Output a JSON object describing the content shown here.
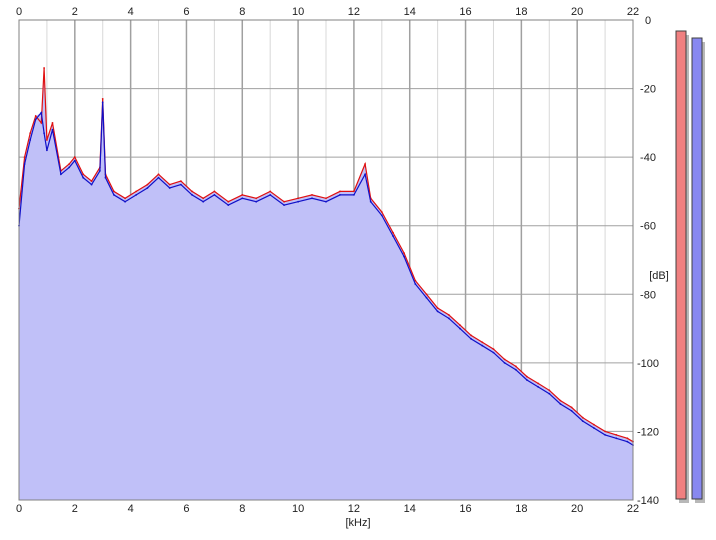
{
  "colors": {
    "background": "#ffffff",
    "plot_background": "#ffffff",
    "grid_major": "#a0a0a0",
    "grid_minor": "#d8d8d8",
    "fill": "#c0c0f8",
    "left_channel": "#e01010",
    "right_channel": "#1010c8",
    "left_meter": "#f08080",
    "right_meter": "#8888f0"
  },
  "chart_data": {
    "type": "line",
    "title": "",
    "xlabel": "[kHz]",
    "ylabel": "[dB]",
    "xlim": [
      0,
      22
    ],
    "ylim": [
      -140,
      0
    ],
    "x_ticks": [
      "0",
      "2",
      "4",
      "6",
      "8",
      "10",
      "12",
      "14",
      "16",
      "18",
      "20",
      "22"
    ],
    "y_ticks": [
      "0",
      "-20",
      "-40",
      "-60",
      "-80",
      "-100",
      "-120",
      "-140"
    ],
    "y_tick_values": [
      0,
      -20,
      -40,
      -60,
      -80,
      -100,
      -120,
      -140
    ],
    "grid": true,
    "filled": true,
    "series": [
      {
        "color": "#e01010",
        "x": [
          0,
          0.2,
          0.4,
          0.6,
          0.8,
          0.9,
          1.0,
          1.2,
          1.5,
          1.8,
          2.0,
          2.3,
          2.6,
          2.9,
          3.0,
          3.1,
          3.4,
          3.8,
          4.2,
          4.6,
          5.0,
          5.4,
          5.8,
          6.2,
          6.6,
          7.0,
          7.5,
          8.0,
          8.5,
          9.0,
          9.5,
          10.0,
          10.5,
          11.0,
          11.5,
          12.0,
          12.4,
          12.6,
          13.0,
          13.4,
          13.8,
          14.2,
          14.6,
          15.0,
          15.4,
          15.8,
          16.2,
          16.6,
          17.0,
          17.4,
          17.8,
          18.2,
          18.6,
          19.0,
          19.4,
          19.8,
          20.2,
          20.6,
          21.0,
          21.4,
          21.8,
          22.0
        ],
        "y": [
          -55,
          -40,
          -33,
          -28,
          -30,
          -14,
          -35,
          -30,
          -44,
          -42,
          -40,
          -45,
          -47,
          -43,
          -23,
          -45,
          -50,
          -52,
          -50,
          -48,
          -45,
          -48,
          -47,
          -50,
          -52,
          -50,
          -53,
          -51,
          -52,
          -50,
          -53,
          -52,
          -51,
          -52,
          -50,
          -50,
          -42,
          -52,
          -56,
          -62,
          -68,
          -76,
          -80,
          -84,
          -86,
          -89,
          -92,
          -94,
          -96,
          -99,
          -101,
          -104,
          -106,
          -108,
          -111,
          -113,
          -116,
          -118,
          -120,
          -121,
          -122,
          -123
        ]
      },
      {
        "color": "#1010c8",
        "x": [
          0,
          0.2,
          0.4,
          0.6,
          0.8,
          0.9,
          1.0,
          1.2,
          1.5,
          1.8,
          2.0,
          2.3,
          2.6,
          2.9,
          3.0,
          3.1,
          3.4,
          3.8,
          4.2,
          4.6,
          5.0,
          5.4,
          5.8,
          6.2,
          6.6,
          7.0,
          7.5,
          8.0,
          8.5,
          9.0,
          9.5,
          10.0,
          10.5,
          11.0,
          11.5,
          12.0,
          12.4,
          12.6,
          13.0,
          13.4,
          13.8,
          14.2,
          14.6,
          15.0,
          15.4,
          15.8,
          16.2,
          16.6,
          17.0,
          17.4,
          17.8,
          18.2,
          18.6,
          19.0,
          19.4,
          19.8,
          20.2,
          20.6,
          21.0,
          21.4,
          21.8,
          22.0
        ],
        "y": [
          -60,
          -42,
          -35,
          -29,
          -27,
          -33,
          -38,
          -32,
          -45,
          -43,
          -41,
          -46,
          -48,
          -44,
          -24,
          -46,
          -51,
          -53,
          -51,
          -49,
          -46,
          -49,
          -48,
          -51,
          -53,
          -51,
          -54,
          -52,
          -53,
          -51,
          -54,
          -53,
          -52,
          -53,
          -51,
          -51,
          -45,
          -53,
          -57,
          -63,
          -69,
          -77,
          -81,
          -85,
          -87,
          -90,
          -93,
          -95,
          -97,
          -100,
          -102,
          -105,
          -107,
          -109,
          -112,
          -114,
          -117,
          -119,
          -121,
          -122,
          -123,
          -124
        ]
      }
    ]
  },
  "meters": {
    "left_level": 0.97,
    "right_level": 0.96
  }
}
